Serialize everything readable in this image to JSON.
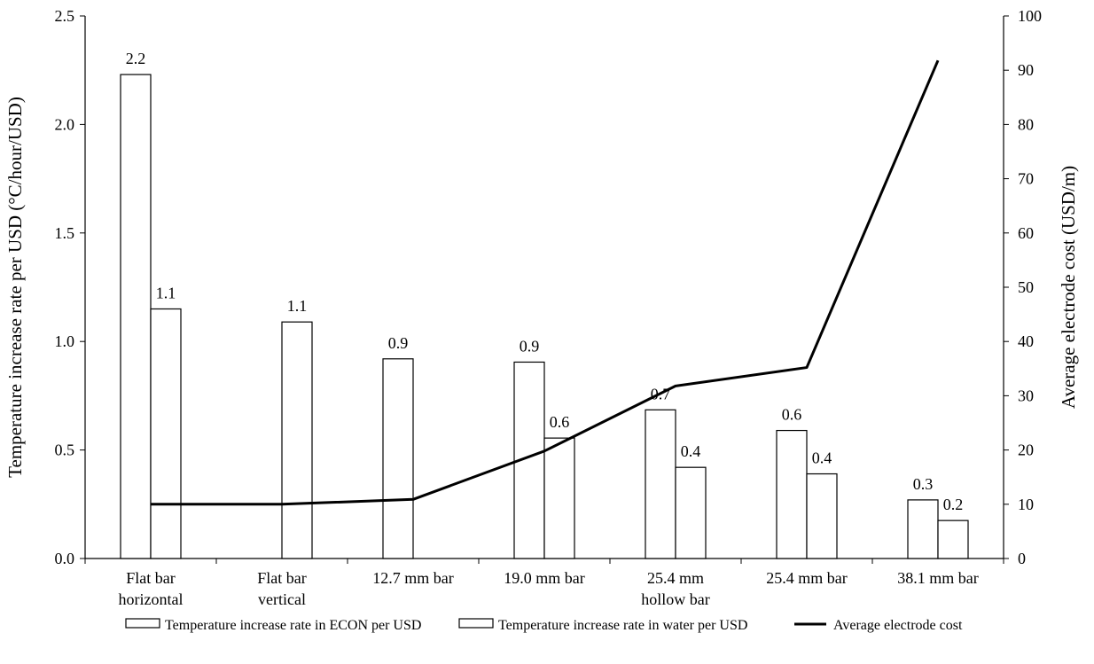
{
  "chart_data": {
    "type": "bar",
    "categories": [
      [
        "Flat bar",
        "horizontal"
      ],
      [
        "Flat bar",
        "vertical"
      ],
      [
        "12.7 mm bar"
      ],
      [
        "19.0 mm bar"
      ],
      [
        "25.4 mm",
        "hollow bar"
      ],
      [
        "25.4 mm bar"
      ],
      [
        "38.1 mm bar"
      ]
    ],
    "series": [
      {
        "name": "Temperature increase rate in ECON per USD",
        "type": "bar",
        "axis": "left",
        "values": [
          2.23,
          null,
          0.92,
          0.905,
          0.685,
          0.59,
          0.27
        ],
        "labels": [
          "2.2",
          "",
          "0.9",
          "0.9",
          "0.7",
          "0.6",
          "0.3"
        ]
      },
      {
        "name": "Temperature increase rate in water per USD",
        "type": "bar",
        "axis": "left",
        "values": [
          1.15,
          1.09,
          null,
          0.555,
          0.42,
          0.39,
          0.175
        ],
        "labels": [
          "1.1",
          "1.1",
          "",
          "0.6",
          "0.4",
          "0.4",
          "0.2"
        ]
      },
      {
        "name": "Average electrode cost",
        "type": "line",
        "axis": "right",
        "values": [
          10,
          10,
          10.9,
          19.8,
          31.8,
          35.2,
          91.8
        ]
      }
    ],
    "ylabel": "Temperature increase rate per USD  (°C/hour/USD)",
    "ylabel_right": "Average electrode cost (USD/m)",
    "xlabel": "",
    "ylim": [
      0,
      2.5
    ],
    "ylim_right": [
      0,
      100
    ],
    "yticks": [
      "0.0",
      "0.5",
      "1.0",
      "1.5",
      "2.0",
      "2.5"
    ],
    "yticks_right": [
      "0",
      "10",
      "20",
      "30",
      "40",
      "50",
      "60",
      "70",
      "80",
      "90",
      "100"
    ],
    "grid": false,
    "legend_position": "bottom"
  },
  "colors": {
    "bar_fill": "#ffffff",
    "bar_stroke": "#000000",
    "line": "#000000"
  }
}
